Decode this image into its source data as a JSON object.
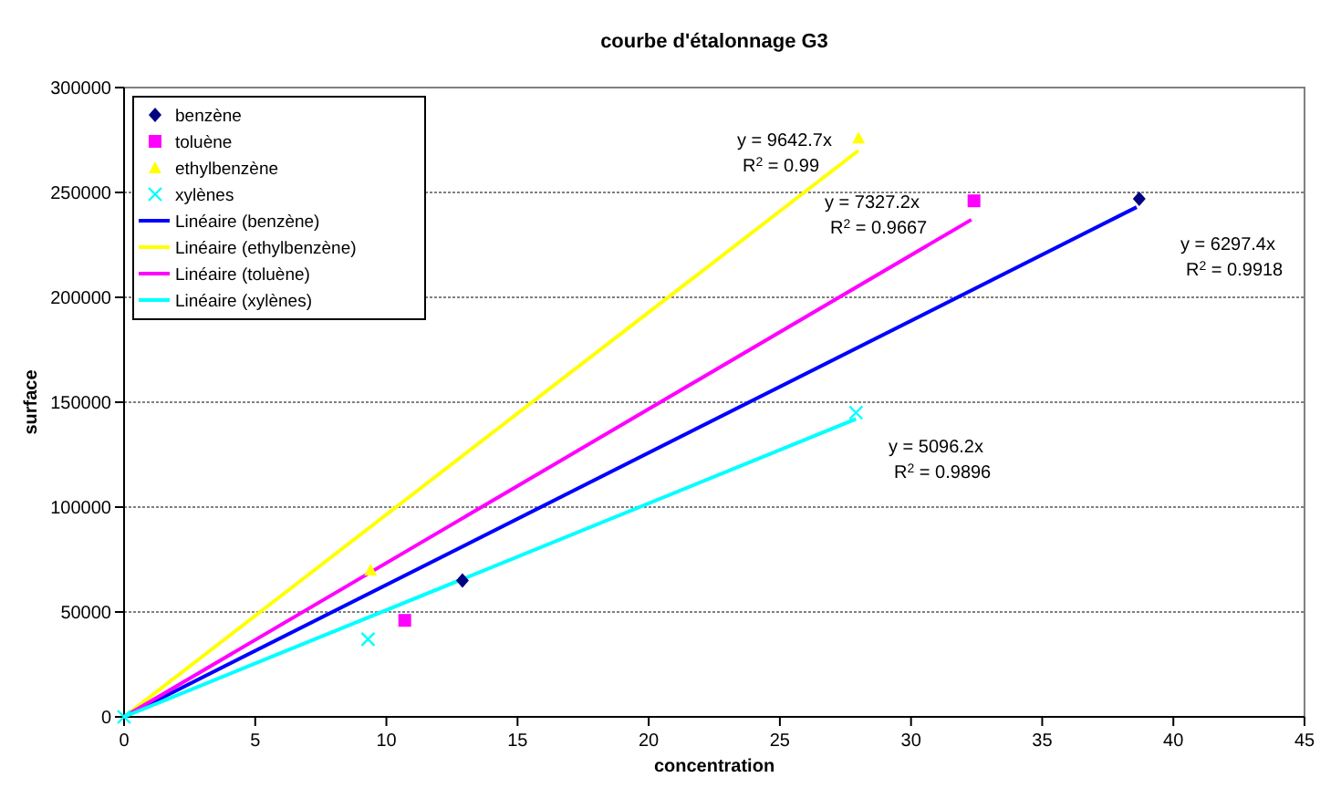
{
  "chart_data": {
    "type": "scatter",
    "title": "courbe d'étalonnage G3",
    "xlabel": "concentration",
    "ylabel": "surface",
    "xlim": [
      0,
      45
    ],
    "xticks": [
      0,
      5,
      10,
      15,
      20,
      25,
      30,
      35,
      40,
      45
    ],
    "ylim": [
      0,
      300000
    ],
    "yticks": [
      0,
      50000,
      100000,
      150000,
      200000,
      250000,
      300000
    ],
    "grid": "y",
    "legend": "top left",
    "series": [
      {
        "name": "benzène",
        "marker": "diamond",
        "color": "#000080",
        "x": [
          12.9,
          38.7
        ],
        "values": [
          65000,
          247000
        ]
      },
      {
        "name": "toluène",
        "marker": "square",
        "color": "#ff00ff",
        "x": [
          10.7,
          32.4
        ],
        "values": [
          46000,
          246000
        ]
      },
      {
        "name": "ethylbenzène",
        "marker": "triangle",
        "color": "#ffff00",
        "x": [
          9.4,
          28
        ],
        "values": [
          70000,
          276000
        ]
      },
      {
        "name": "xylènes",
        "marker": "cross",
        "color": "#00ffff",
        "x": [
          0,
          9.3,
          27.9
        ],
        "values": [
          0,
          37000,
          145000
        ]
      },
      {
        "name": "Linéaire (benzène)",
        "type": "line",
        "color": "#0000ff",
        "x": [
          0,
          38.6
        ],
        "values": [
          0,
          243000
        ]
      },
      {
        "name": "Linéaire (ethylbenzène)",
        "type": "line",
        "color": "#ffff00",
        "x": [
          0,
          28
        ],
        "values": [
          0,
          270000
        ]
      },
      {
        "name": "Linéaire (toluène)",
        "type": "line",
        "color": "#ff00ff",
        "x": [
          0,
          32.3
        ],
        "values": [
          0,
          237000
        ]
      },
      {
        "name": "Linéaire (xylènes)",
        "type": "line",
        "color": "#00ffff",
        "x": [
          0,
          27.9
        ],
        "values": [
          0,
          142000
        ]
      }
    ],
    "annotations": [
      "y = 9642.7x\nR$^{2}$ = 0.99",
      "y = 7327.2x\nR$^{2}$ = 0.9667",
      "y = 6297.4x\nR$^{2}$ = 0.9918",
      "y = 5096.2x\nR$^{2}$ = 0.9896"
    ]
  }
}
